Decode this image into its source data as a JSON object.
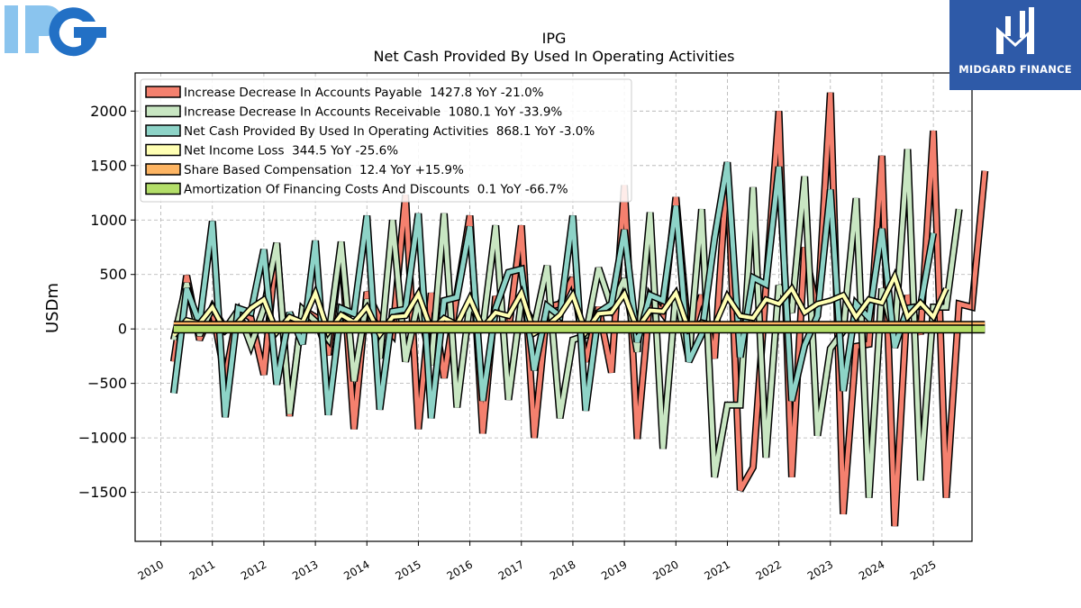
{
  "logos": {
    "left_text": "IPG",
    "right_text": "MIDGARD FINANCE"
  },
  "chart_data": {
    "type": "line",
    "title": "IPG",
    "subtitle": "Net Cash Provided By Used In Operating Activities",
    "ylabel": "USDm",
    "xlabel": "",
    "ylim": [
      -1950,
      2350
    ],
    "xlim": [
      2009.5,
      2025.75
    ],
    "yticks": [
      -1500,
      -1000,
      -500,
      0,
      500,
      1000,
      1500,
      2000
    ],
    "xticks": [
      2010,
      2011,
      2012,
      2013,
      2014,
      2015,
      2016,
      2017,
      2018,
      2019,
      2020,
      2021,
      2022,
      2023,
      2024,
      2025
    ],
    "grid": true,
    "legend_position": "upper-left",
    "x_start": 2010.25,
    "x_step": 0.25,
    "series": [
      {
        "name": "Increase Decrease In Accounts Payable",
        "legend": "Increase Decrease In Accounts Payable  1427.8 YoY -21.0%",
        "color": "#f4806e",
        "line_width": 5,
        "values": [
          -300,
          490,
          -100,
          180,
          -450,
          180,
          100,
          -420,
          780,
          -800,
          180,
          110,
          -240,
          780,
          -920,
          340,
          90,
          -50,
          1230,
          -920,
          330,
          -450,
          320,
          1040,
          -960,
          300,
          -20,
          950,
          -1000,
          200,
          230,
          470,
          -300,
          200,
          -400,
          1320,
          -1010,
          300,
          140,
          1210,
          -100,
          310,
          -270,
          1500,
          -1480,
          -1270,
          380,
          2000,
          -1360,
          750,
          130,
          2170,
          -1700,
          -160,
          -140,
          1590,
          -1810,
          310,
          -50,
          1820,
          -1550,
          230,
          200,
          1450
        ]
      },
      {
        "name": "Increase Decrease In Accounts Receivable",
        "legend": "Increase Decrease In Accounts Receivable  1080.1 YoY -33.9%",
        "color": "#c8e6c2",
        "line_width": 5,
        "values": [
          -100,
          420,
          -60,
          200,
          0,
          170,
          -150,
          190,
          790,
          -780,
          180,
          70,
          -90,
          800,
          -480,
          270,
          -270,
          1000,
          -300,
          260,
          -330,
          1060,
          -720,
          240,
          0,
          950,
          -650,
          260,
          30,
          580,
          -820,
          -100,
          -60,
          560,
          200,
          460,
          -210,
          1070,
          -1100,
          340,
          -280,
          1100,
          -1360,
          -700,
          -700,
          1300,
          -1180,
          400,
          150,
          1400,
          -980,
          -180,
          -20,
          1200,
          -1550,
          370,
          -70,
          1650,
          -1390,
          200,
          200,
          1100
        ]
      },
      {
        "name": "Net Cash Provided By Used In Operating Activities",
        "legend": "Net Cash Provided By Used In Operating Activities  868.1 YoY -3.0%",
        "color": "#8dd3c7",
        "line_width": 5,
        "values": [
          -590,
          370,
          50,
          990,
          -810,
          190,
          150,
          730,
          -510,
          150,
          -140,
          810,
          -790,
          190,
          140,
          1040,
          -740,
          160,
          180,
          1060,
          -820,
          260,
          290,
          940,
          -660,
          190,
          520,
          550,
          -380,
          210,
          120,
          1040,
          -750,
          150,
          230,
          910,
          -120,
          310,
          260,
          1130,
          -300,
          -50,
          830,
          1530,
          -260,
          470,
          410,
          1490,
          -660,
          -150,
          120,
          1280,
          -570,
          230,
          100,
          920,
          -170,
          190,
          210,
          880
        ]
      },
      {
        "name": "Net Income Loss",
        "legend": "Net Income Loss  344.5 YoY -25.6%",
        "color": "#ffffb3",
        "line_width": 4,
        "values": [
          -60,
          80,
          50,
          200,
          -20,
          60,
          190,
          270,
          -30,
          110,
          60,
          330,
          -30,
          130,
          60,
          200,
          -50,
          110,
          120,
          320,
          -10,
          100,
          40,
          280,
          10,
          150,
          120,
          330,
          -40,
          30,
          130,
          310,
          -30,
          140,
          150,
          320,
          0,
          170,
          160,
          330,
          -10,
          60,
          30,
          300,
          120,
          100,
          270,
          230,
          370,
          150,
          230,
          260,
          310,
          110,
          270,
          240,
          480,
          110,
          240,
          110,
          370
        ]
      },
      {
        "name": "Share Based Compensation",
        "legend": "Share Based Compensation  12.4 YoY +15.9%",
        "color": "#fdb462",
        "line_width": 10,
        "values": [
          20,
          20,
          20,
          20,
          20,
          20,
          20,
          20,
          20,
          20,
          20,
          20,
          20,
          20,
          20,
          20,
          20,
          20,
          20,
          20,
          20,
          20,
          20,
          20,
          20,
          20,
          20,
          20,
          20,
          20,
          20,
          20,
          20,
          20,
          20,
          20,
          20,
          20,
          20,
          20,
          20,
          20,
          20,
          20,
          20,
          20,
          20,
          20,
          20,
          20,
          20,
          20,
          20,
          20,
          20,
          20,
          20,
          20,
          20,
          20,
          20,
          20,
          20,
          20
        ]
      },
      {
        "name": "Amortization Of Financing Costs And Discounts",
        "legend": "Amortization Of Financing Costs And Discounts  0.1 YoY -66.7%",
        "color": "#b3de69",
        "line_width": 7,
        "values": [
          0,
          0,
          0,
          0,
          0,
          0,
          0,
          0,
          0,
          0,
          0,
          0,
          0,
          0,
          0,
          0,
          0,
          0,
          0,
          0,
          0,
          0,
          0,
          0,
          0,
          0,
          0,
          0,
          0,
          0,
          0,
          0,
          0,
          0,
          0,
          0,
          0,
          0,
          0,
          0,
          0,
          0,
          0,
          0,
          0,
          0,
          0,
          0,
          0,
          0,
          0,
          0,
          0,
          0,
          0,
          0,
          0,
          0,
          0,
          0,
          0,
          0,
          0,
          0
        ]
      }
    ]
  }
}
